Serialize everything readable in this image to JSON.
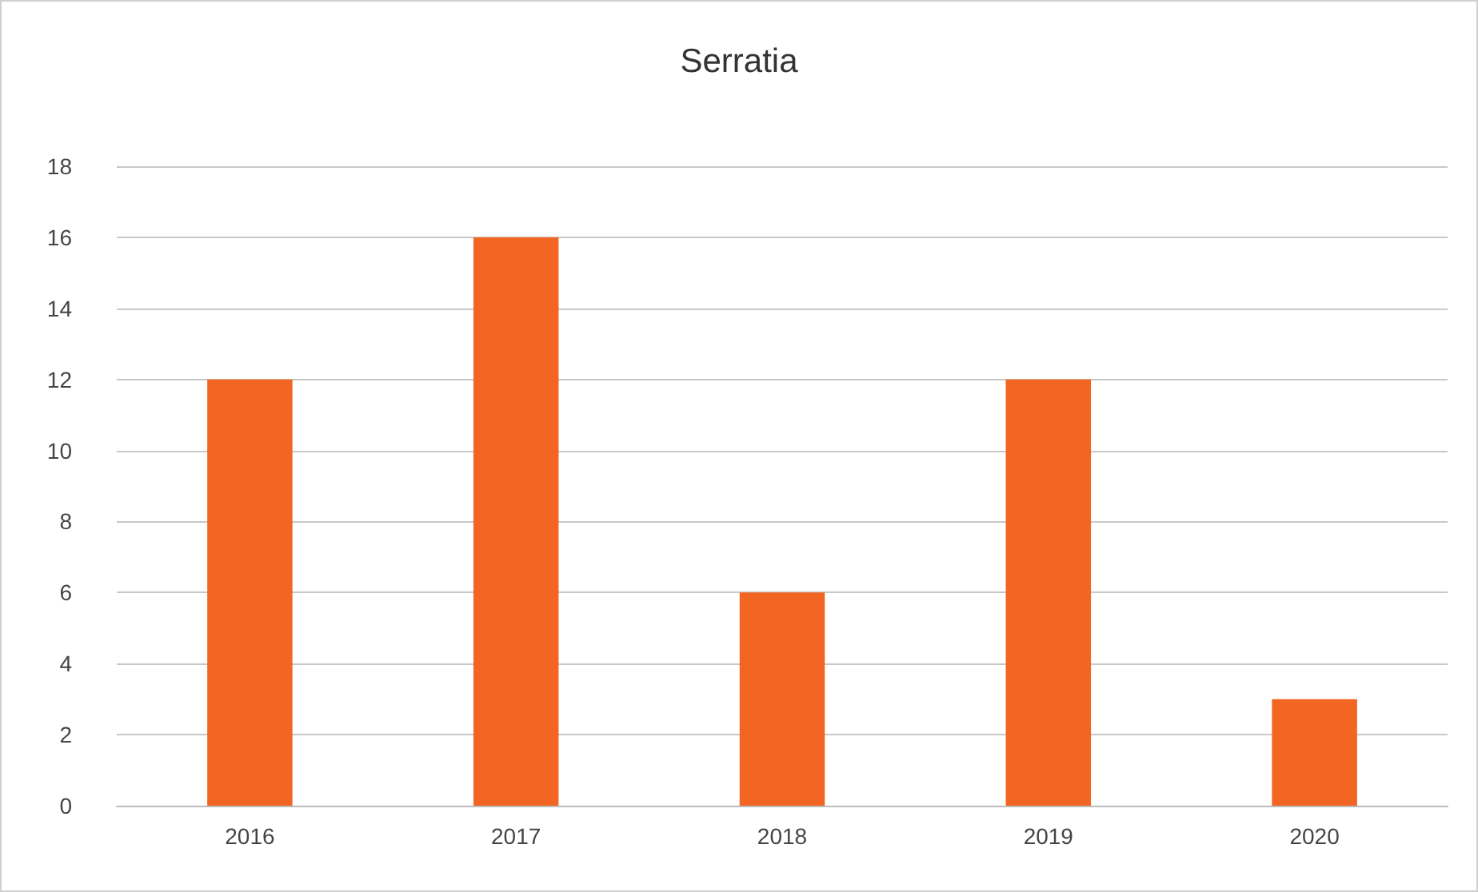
{
  "chart_data": {
    "type": "bar",
    "title": "Serratia",
    "categories": [
      "2016",
      "2017",
      "2018",
      "2019",
      "2020"
    ],
    "values": [
      12,
      16,
      6,
      12,
      3
    ],
    "color": "#f26522",
    "ylim": [
      0,
      18
    ],
    "yticks": [
      0,
      2,
      4,
      6,
      8,
      10,
      12,
      14,
      16,
      18
    ],
    "grid": "y"
  }
}
